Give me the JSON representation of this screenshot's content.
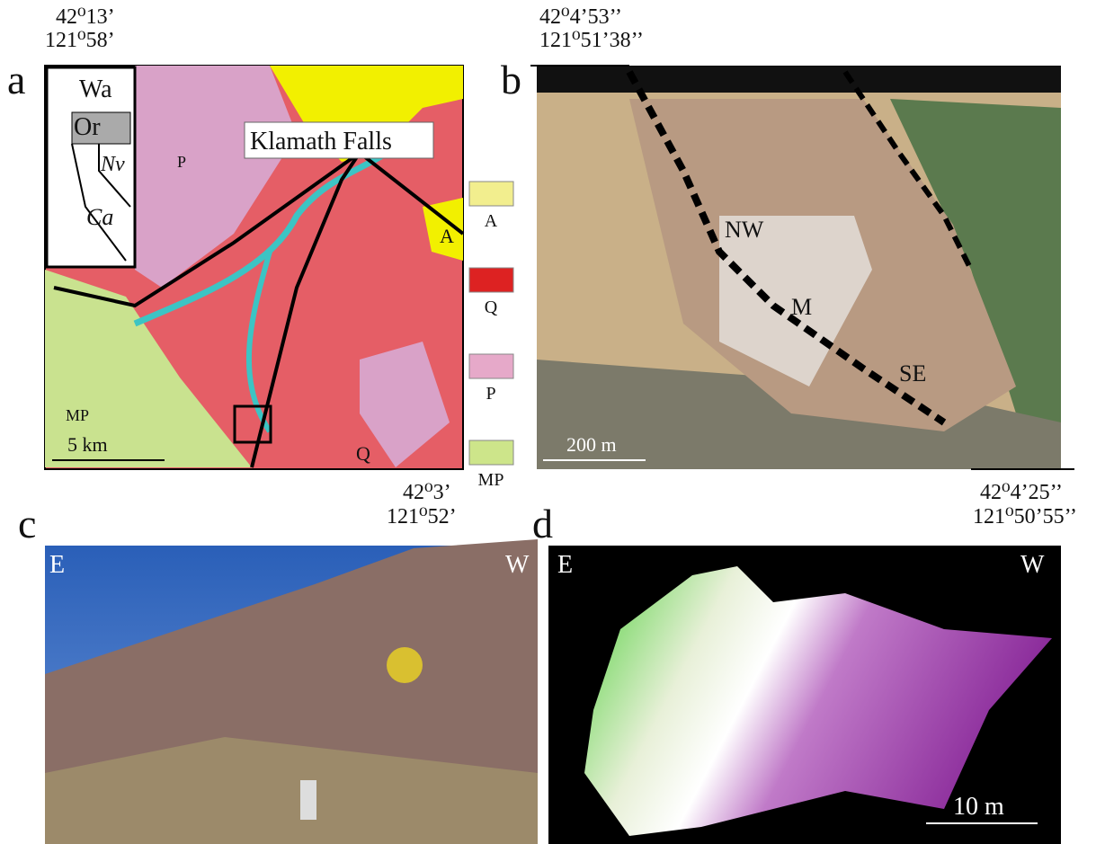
{
  "panels": {
    "a": {
      "label": "a",
      "top_coords": [
        "42⁰13’",
        "121⁰58’"
      ],
      "bottom_coords": [
        "42⁰3’",
        "121⁰52’"
      ],
      "inset_labels": [
        "Wa",
        "Or",
        "Nv",
        "Ca"
      ],
      "map_labels": [
        "Klamath Falls",
        "P",
        "A",
        "MP",
        "Q"
      ],
      "scale": "5 km",
      "legend": [
        {
          "label": "A",
          "color": "#f2ee8e"
        },
        {
          "label": "Q",
          "color": "#dd2222"
        },
        {
          "label": "P",
          "color": "#e6a9c9"
        },
        {
          "label": "MP",
          "color": "#cde58a"
        }
      ]
    },
    "b": {
      "label": "b",
      "top_coords": [
        "42⁰4’53’’",
        "121⁰51’38’’"
      ],
      "bottom_coords": [
        "42⁰4’25’’",
        "121⁰50’55’’"
      ],
      "site_labels": [
        "NW",
        "M",
        "SE"
      ],
      "scale": "200 m"
    },
    "c": {
      "label": "c",
      "orientation": [
        "E",
        "W"
      ]
    },
    "d": {
      "label": "d",
      "orientation": [
        "E",
        "W"
      ],
      "scale": "10 m"
    }
  }
}
